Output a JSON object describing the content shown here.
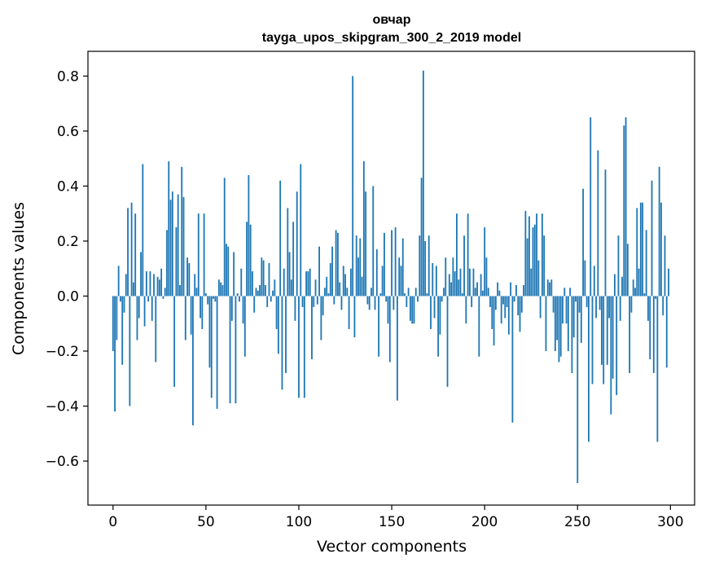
{
  "chart_data": {
    "type": "bar",
    "title": "овчар",
    "subtitle": "tayga_upos_skipgram_300_2_2019 model",
    "xlabel": "Vector components",
    "ylabel": "Components values",
    "xlim": [
      -13.5,
      313
    ],
    "ylim": [
      -0.76,
      0.89
    ],
    "xticks": [
      0,
      50,
      100,
      150,
      200,
      250,
      300
    ],
    "yticks": [
      -0.6,
      -0.4,
      -0.2,
      0.0,
      0.2,
      0.4,
      0.6,
      0.8
    ],
    "ytick_labels": [
      "−0.6",
      "−0.4",
      "−0.2",
      "0.0",
      "0.2",
      "0.4",
      "0.6",
      "0.8"
    ],
    "bar_color": "#1f77b4",
    "grid": false,
    "values": [
      -0.2,
      -0.42,
      -0.16,
      0.11,
      -0.02,
      -0.25,
      -0.06,
      0.08,
      0.32,
      -0.4,
      0.34,
      0.05,
      0.3,
      -0.16,
      -0.08,
      0.16,
      0.48,
      -0.11,
      0.09,
      -0.02,
      0.09,
      -0.09,
      0.08,
      -0.24,
      0.07,
      0.06,
      0.1,
      -0.01,
      0.03,
      0.24,
      0.49,
      0.35,
      0.38,
      -0.33,
      0.25,
      0.37,
      0.04,
      0.47,
      0.36,
      -0.16,
      0.14,
      0.12,
      -0.14,
      -0.47,
      0.08,
      0.03,
      0.3,
      -0.08,
      -0.12,
      0.3,
      0.01,
      -0.03,
      -0.26,
      -0.37,
      -0.01,
      -0.02,
      -0.41,
      0.06,
      0.05,
      0.04,
      0.43,
      0.19,
      0.18,
      -0.39,
      -0.09,
      0.16,
      -0.39,
      0.01,
      -0.02,
      0.1,
      -0.1,
      -0.22,
      0.27,
      0.44,
      0.26,
      0.09,
      -0.06,
      0.03,
      0.02,
      0.04,
      0.14,
      0.13,
      0.04,
      -0.04,
      0.12,
      -0.02,
      0.02,
      0.06,
      -0.12,
      -0.21,
      0.42,
      -0.34,
      0.1,
      -0.28,
      0.32,
      0.16,
      0.06,
      0.27,
      -0.09,
      0.38,
      -0.37,
      0.48,
      -0.04,
      -0.37,
      0.09,
      0.09,
      0.1,
      -0.23,
      -0.04,
      0.06,
      -0.03,
      0.18,
      -0.16,
      -0.07,
      0.03,
      0.07,
      0.01,
      0.12,
      0.18,
      -0.03,
      0.24,
      0.23,
      0.05,
      -0.05,
      0.11,
      0.08,
      0.03,
      -0.12,
      0.1,
      0.8,
      -0.15,
      0.22,
      0.14,
      0.21,
      0.07,
      0.49,
      0.38,
      -0.03,
      -0.05,
      0.03,
      0.4,
      -0.05,
      0.17,
      -0.22,
      0.01,
      0.11,
      0.23,
      -0.02,
      -0.1,
      -0.24,
      0.24,
      -0.05,
      0.25,
      -0.38,
      0.14,
      0.11,
      0.21,
      0.01,
      -0.04,
      0.03,
      -0.09,
      -0.1,
      -0.1,
      0.03,
      -0.02,
      0.22,
      0.43,
      0.82,
      0.2,
      0.01,
      0.22,
      -0.12,
      0.12,
      -0.08,
      0.11,
      -0.22,
      -0.14,
      -0.02,
      0.03,
      0.14,
      -0.33,
      0.08,
      0.05,
      0.14,
      0.09,
      0.3,
      0.06,
      0.1,
      0.01,
      0.22,
      -0.1,
      0.3,
      0.1,
      -0.04,
      0.1,
      0.03,
      0.05,
      -0.22,
      0.08,
      0.02,
      0.25,
      0.14,
      0.03,
      -0.04,
      -0.12,
      -0.18,
      -0.05,
      0.05,
      0.02,
      -0.1,
      -0.03,
      -0.08,
      -0.04,
      -0.14,
      0.05,
      -0.46,
      -0.02,
      0.04,
      -0.07,
      -0.13,
      -0.06,
      0.04,
      0.31,
      0.21,
      0.29,
      0.1,
      0.25,
      0.26,
      0.3,
      0.13,
      -0.08,
      0.3,
      0.22,
      -0.2,
      0.06,
      0.05,
      0.06,
      -0.06,
      -0.2,
      -0.16,
      -0.24,
      -0.22,
      -0.1,
      0.03,
      -0.1,
      -0.2,
      0.03,
      -0.28,
      -0.15,
      -0.02,
      -0.68,
      -0.06,
      -0.17,
      0.39,
      0.13,
      -0.04,
      -0.53,
      0.65,
      -0.32,
      0.11,
      -0.08,
      0.53,
      -0.05,
      -0.25,
      -0.32,
      0.46,
      -0.25,
      -0.08,
      -0.43,
      -0.3,
      0.08,
      -0.36,
      0.22,
      -0.09,
      0.07,
      0.62,
      0.65,
      0.19,
      -0.28,
      -0.06,
      0.06,
      0.03,
      0.32,
      0.1,
      0.34,
      0.34,
      0.01,
      0.24,
      -0.09,
      -0.23,
      0.42,
      -0.28,
      -0.01,
      -0.53,
      0.47,
      0.34,
      -0.07,
      0.22,
      -0.26,
      0.1
    ]
  }
}
